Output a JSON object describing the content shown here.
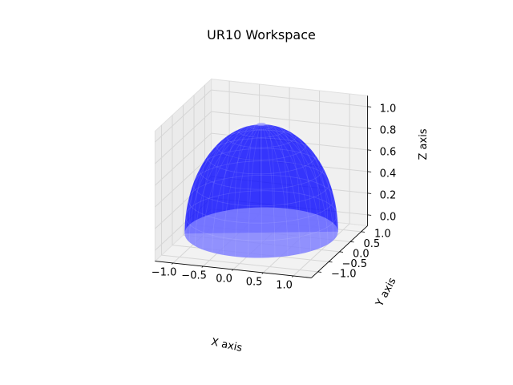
{
  "chart_data": {
    "type": "surface3d",
    "title": "UR10 Workspace",
    "xlabel": "X axis",
    "ylabel": "Y axis",
    "zlabel": "Z axis",
    "xlim": [
      -1.3,
      1.3
    ],
    "ylim": [
      -1.3,
      1.3
    ],
    "zlim": [
      -0.1,
      1.1
    ],
    "xticks": [
      -1.0,
      -0.5,
      0.0,
      0.5,
      1.0
    ],
    "yticks": [
      -1.0,
      -0.5,
      0.0,
      0.5,
      1.0
    ],
    "zticks": [
      0.0,
      0.2,
      0.4,
      0.6,
      0.8,
      1.0
    ],
    "xtick_labels": [
      "−1.0",
      "−0.5",
      "0.0",
      "0.5",
      "1.0"
    ],
    "ytick_labels": [
      "−1.0",
      "−0.5",
      "0.0",
      "0.5",
      "1.0"
    ],
    "ztick_labels": [
      "0.0",
      "0.2",
      "0.4",
      "0.6",
      "0.8",
      "1.0"
    ],
    "surface": {
      "shape": "upper hemisphere (ellipsoid cap)",
      "radius_xy": 1.2,
      "z_min": 0.0,
      "z_max": 1.0,
      "color": "#0000ff",
      "opacity": 0.55
    },
    "grid": true
  }
}
